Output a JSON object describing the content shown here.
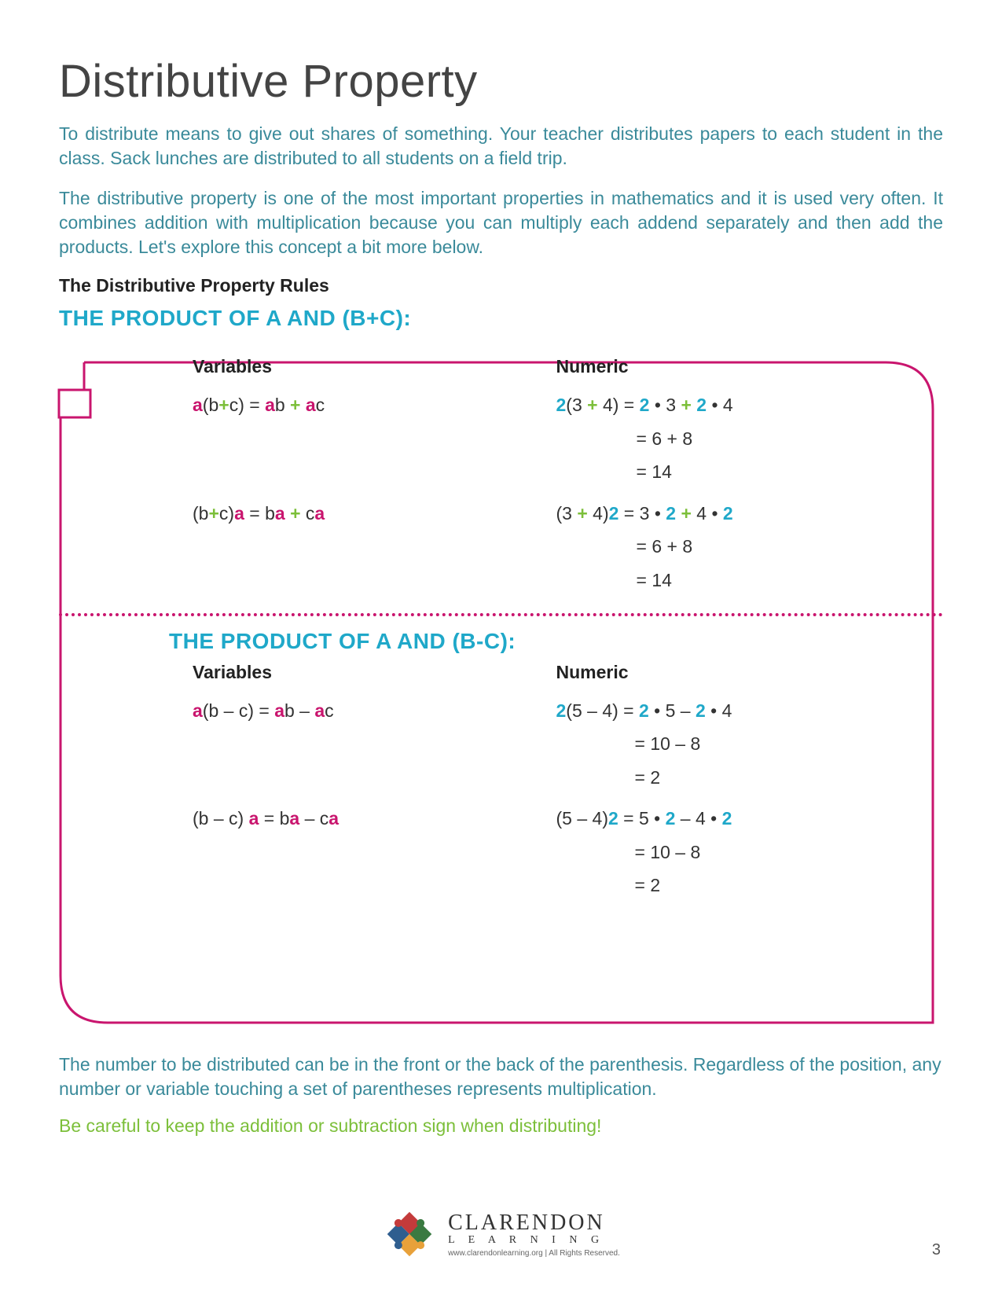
{
  "title": "Distributive Property",
  "intro1": "To distribute means to give out shares of something.  Your teacher distributes papers to each student in the class.  Sack lunches are distributed to all students on a field trip.",
  "intro2": "The distributive property is one of the most important properties in mathematics and it is used very often.  It combines addition with multiplication because you can multiply each addend separately and then add the products.  Let's explore this concept a bit more below.",
  "rulesTitle": "The Distributive Property Rules",
  "sec1": {
    "heading": "THE PRODUCT OF A AND (B+C):",
    "varLabel": "Variables",
    "numLabel": "Numeric",
    "v1": "<span class='a'>a</span>(b<span class='op'>+</span>c) = <span class='a'>a</span>b <span class='op'>+</span> <span class='a'>a</span>c",
    "v2": "(b<span class='op'>+</span>c)<span class='a'>a</span> = b<span class='a'>a</span> <span class='op'>+</span> c<span class='a'>a</span>",
    "n1a": "<span class='n2'>2</span>(3 <span class='op'>+</span> 4) = <span class='n2'>2</span> • 3 <span class='op'>+</span> <span class='n2'>2</span> • 4",
    "n1b": "= 6 + 8",
    "n1c": "= 14",
    "n2a": "(3 <span class='op'>+</span> 4)<span class='n2'>2</span> = 3 • <span class='n2'>2</span> <span class='op'>+</span> 4 • <span class='n2'>2</span>",
    "n2b": "= 6 + 8",
    "n2c": "= 14"
  },
  "sec2": {
    "heading": "THE PRODUCT OF A AND (B-C):",
    "varLabel": "Variables",
    "numLabel": "Numeric",
    "v1": "<span class='a'>a</span>(b – c) = <span class='a'>a</span>b – <span class='a'>a</span>c",
    "v2": "(b – c) <span class='a'>a</span> = b<span class='a'>a</span> – c<span class='a'>a</span>",
    "n1a": "<span class='n2'>2</span>(5 – 4) = <span class='n2'>2</span> • 5 – <span class='n2'>2</span> • 4",
    "n1b": "= 10 – 8",
    "n1c": "= 2",
    "n2a": "(5 – 4)<span class='n2'>2</span> = 5 • <span class='n2'>2</span> – 4 • <span class='n2'>2</span>",
    "n2b": "= 10 – 8",
    "n2c": "= 2"
  },
  "noteBlue": "The number to be distributed can be in the front or the back of the parenthesis.  Regardless of the position, any number or variable touching a set of parentheses represents multiplication.",
  "noteGreen": "Be careful to keep the addition or subtraction sign when distributing!",
  "footer": {
    "brand": "CLARENDON",
    "sub": "L E A R N I N G",
    "url": "www.clarendonlearning.org  |  All Rights Reserved."
  },
  "pageNum": "3",
  "colors": {
    "magenta": "#c9156e",
    "teal": "#1fa8c9",
    "tealText": "#3a8a9a",
    "green": "#7cbf3a"
  },
  "logo": {
    "c1": "#c43b3b",
    "c2": "#3a7a41",
    "c3": "#e8a13a",
    "c4": "#2f5e8f"
  }
}
